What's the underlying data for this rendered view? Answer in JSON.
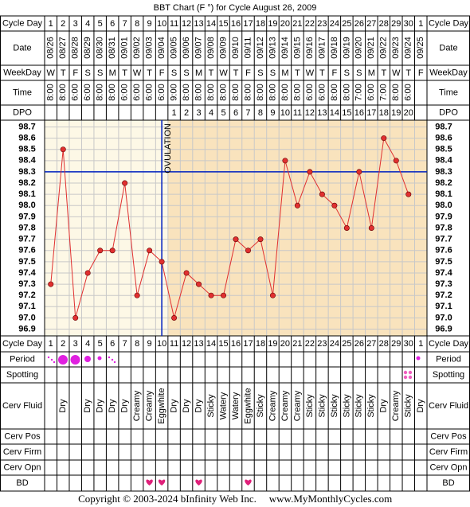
{
  "chart_data": {
    "type": "line",
    "title": "BBT Chart (F °) for Cycle August 26, 2009",
    "row_labels": {
      "cycle_day": "Cycle Day",
      "date": "Date",
      "weekday": "WeekDay",
      "time": "Time",
      "dpo": "DPO",
      "period": "Period",
      "spotting": "Spotting",
      "cerv_fluid": "Cerv Fluid",
      "cerv_pos": "Cerv Pos",
      "cerv_firm": "Cerv Firm",
      "cerv_opn": "Cerv Opn",
      "bd": "BD"
    },
    "cycle_days": [
      1,
      2,
      3,
      4,
      5,
      6,
      7,
      8,
      9,
      10,
      11,
      12,
      13,
      14,
      15,
      16,
      17,
      18,
      19,
      20,
      21,
      22,
      23,
      24,
      25,
      26,
      27,
      28,
      29,
      30,
      1
    ],
    "dates": [
      "08/26",
      "08/27",
      "08/28",
      "08/29",
      "08/30",
      "08/31",
      "09/01",
      "09/02",
      "09/03",
      "09/04",
      "09/05",
      "09/06",
      "09/07",
      "09/08",
      "09/09",
      "09/10",
      "09/11",
      "09/12",
      "09/13",
      "09/14",
      "09/15",
      "09/16",
      "09/17",
      "09/18",
      "09/19",
      "09/20",
      "09/21",
      "09/22",
      "09/23",
      "09/24",
      "09/25"
    ],
    "weekdays": [
      "W",
      "T",
      "F",
      "S",
      "S",
      "M",
      "T",
      "W",
      "T",
      "F",
      "S",
      "S",
      "M",
      "T",
      "W",
      "T",
      "F",
      "S",
      "S",
      "M",
      "T",
      "W",
      "T",
      "F",
      "S",
      "S",
      "M",
      "T",
      "W",
      "T",
      "F"
    ],
    "times": [
      "8:00",
      "8:00",
      "6:00",
      "6:00",
      "8:00",
      "8:00",
      "6:00",
      "6:00",
      "6:00",
      "6:00",
      "9:00",
      "8:00",
      "8:00",
      "8:00",
      "8:00",
      "8:00",
      "8:00",
      "8:00",
      "8:00",
      "8:00",
      "8:00",
      "6:00",
      "6:00",
      "8:00",
      "8:00",
      "7:00",
      "6:00",
      "7:00",
      "8:00",
      "6:00",
      null
    ],
    "dpo": [
      null,
      null,
      null,
      null,
      null,
      null,
      null,
      null,
      null,
      null,
      1,
      2,
      3,
      4,
      5,
      6,
      7,
      8,
      9,
      10,
      11,
      12,
      13,
      14,
      15,
      16,
      17,
      18,
      19,
      20,
      null
    ],
    "values": [
      97.3,
      98.5,
      97.0,
      97.4,
      97.6,
      97.6,
      98.2,
      97.2,
      97.6,
      97.5,
      97.0,
      97.4,
      97.3,
      97.2,
      97.2,
      97.7,
      97.6,
      97.7,
      97.2,
      98.4,
      98.0,
      98.3,
      98.1,
      98.0,
      97.8,
      98.3,
      97.8,
      98.6,
      98.4,
      98.1,
      null
    ],
    "color": "#e03030",
    "ylim": [
      96.84,
      98.76
    ],
    "yticks": [
      96.9,
      {
        "value": 97,
        "label": "97.0"
      },
      97.1,
      97.2,
      97.3,
      97.4,
      97.5,
      97.6,
      97.7,
      97.8,
      97.9,
      {
        "value": 98,
        "label": "98.0"
      },
      98.1,
      98.2,
      98.3,
      98.4,
      98.5,
      98.6,
      98.7
    ],
    "grid": true,
    "coverline": 98.3,
    "ovulation_label": "OVULATION",
    "ovulation_date": "09/04",
    "cerv_fluid": [
      null,
      "Dry",
      null,
      "Dry",
      "Dry",
      "Dry",
      "Dry",
      "Creamy",
      "Creamy",
      "Eggwhite",
      "Dry",
      "Dry",
      "Dry",
      "Sticky",
      "Watery",
      "Watery",
      "Eggwhite",
      "Sticky",
      "Creamy",
      "Creamy",
      "Creamy",
      "Sticky",
      "Sticky",
      "Sticky",
      "Sticky",
      "Sticky",
      "Sticky",
      "Dry",
      "Creamy",
      "Sticky",
      "Dry"
    ],
    "copyright": "Copyright © 2003-2024 bInfinity Web Inc.",
    "website": "www.MyMonthlyCycles.com"
  }
}
